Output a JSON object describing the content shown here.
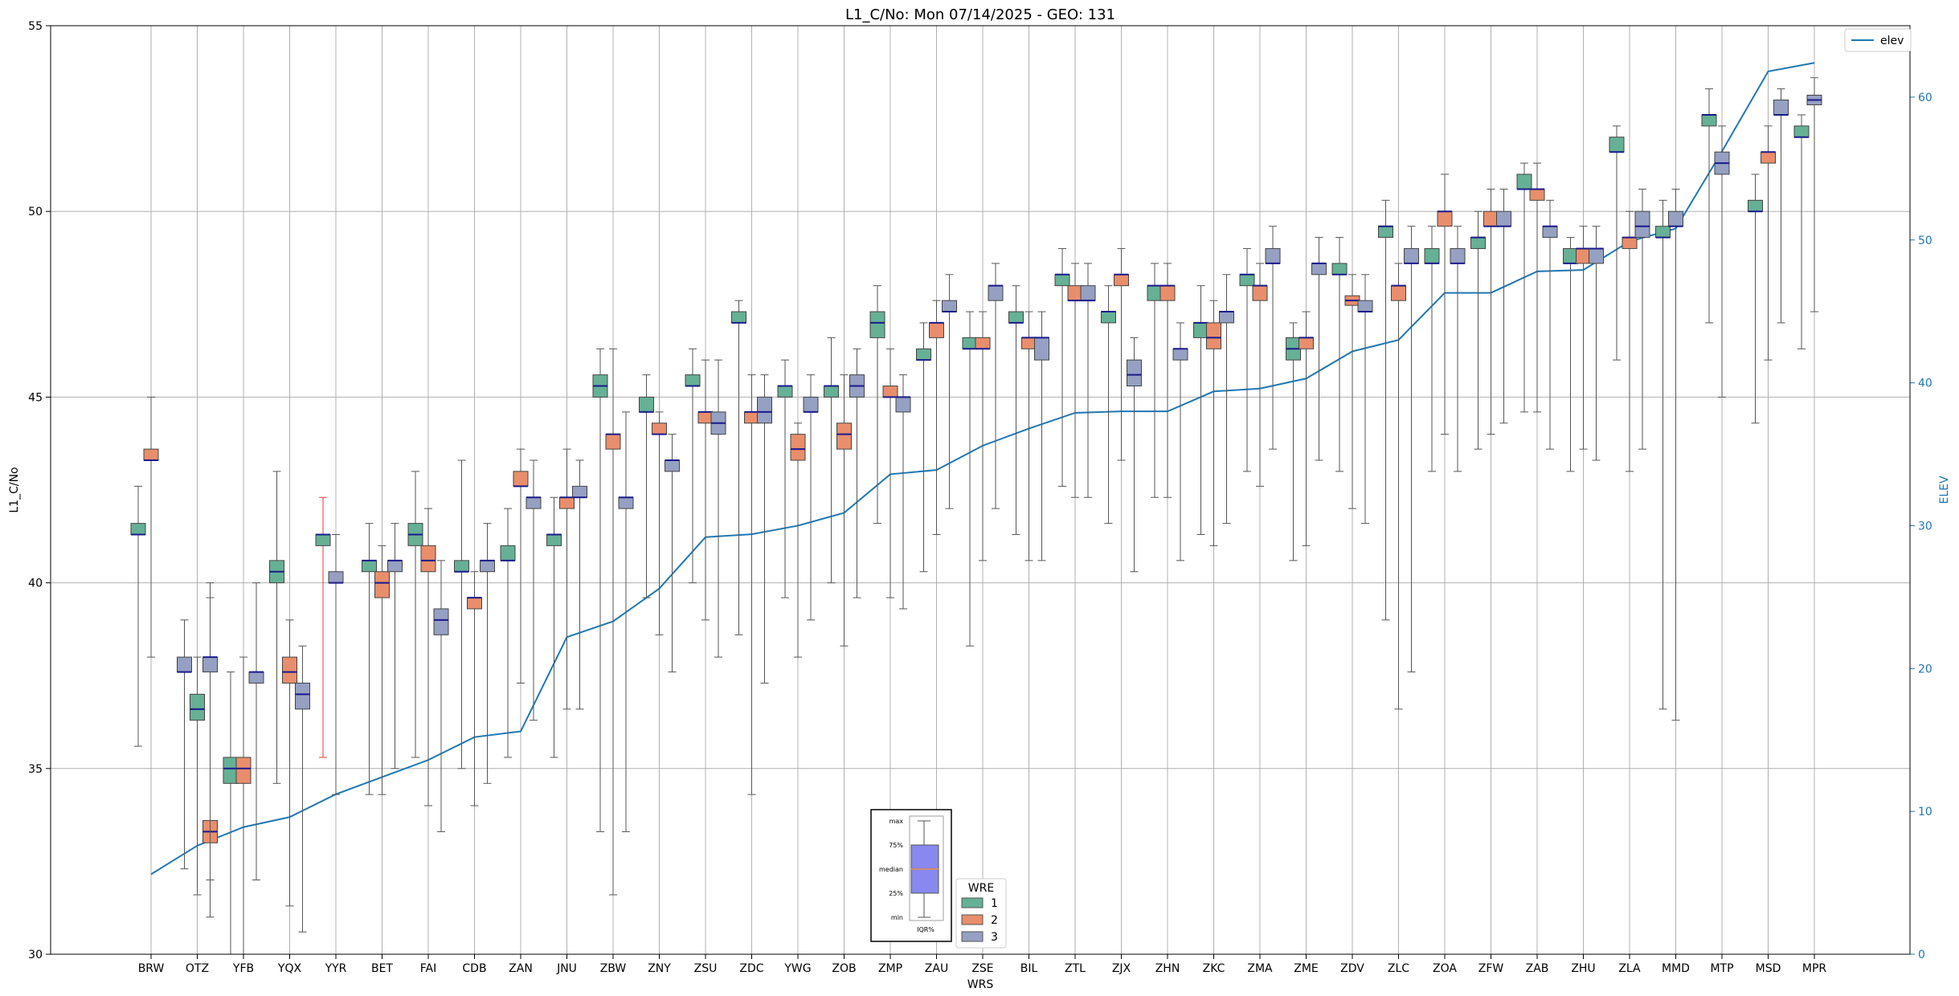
{
  "chart_data": {
    "type": "box",
    "title": "L1_C/No: Mon 07/14/2025 - GEO: 131",
    "xlabel": "WRS",
    "ylabel": "L1_C/No",
    "y2label": "ELEV",
    "ylim": [
      30,
      55
    ],
    "y2lim": [
      0,
      65
    ],
    "yticks": [
      30,
      35,
      40,
      45,
      50,
      55
    ],
    "y2ticks": [
      0,
      10,
      20,
      30,
      40,
      50,
      60
    ],
    "grid": true,
    "categories": [
      "BRW",
      "OTZ",
      "YFB",
      "YQX",
      "YYR",
      "BET",
      "FAI",
      "CDB",
      "ZAN",
      "JNU",
      "ZBW",
      "ZNY",
      "ZSU",
      "ZDC",
      "YWG",
      "ZOB",
      "ZMP",
      "ZAU",
      "ZSE",
      "BIL",
      "ZTL",
      "ZJX",
      "ZHN",
      "ZKC",
      "ZMA",
      "ZME",
      "ZDV",
      "ZLC",
      "ZOA",
      "ZFW",
      "ZAB",
      "ZHU",
      "ZLA",
      "MMD",
      "MTP",
      "MSD",
      "MPR"
    ],
    "wre_legend": {
      "title": "WRE",
      "entries": [
        {
          "label": "1",
          "color": "#66b096"
        },
        {
          "label": "2",
          "color": "#e88e6c"
        },
        {
          "label": "3",
          "color": "#95a0c2"
        }
      ]
    },
    "elev_series": {
      "name": "elev",
      "color": "#1f77b4",
      "values": [
        5.6,
        7.6,
        8.9,
        9.6,
        11.2,
        12.4,
        13.6,
        15.2,
        15.6,
        22.2,
        23.3,
        25.6,
        29.2,
        29.4,
        30.0,
        30.9,
        33.6,
        33.9,
        35.6,
        36.8,
        37.9,
        38.0,
        38.0,
        39.4,
        39.6,
        40.3,
        42.2,
        43.0,
        46.3,
        46.3,
        47.8,
        47.9,
        49.9,
        50.8,
        56.2,
        61.8,
        62.4
      ]
    },
    "boxes": [
      {
        "station": "BRW",
        "wre": 1,
        "min": 35.6,
        "q1": 41.3,
        "median": 41.3,
        "q3": 41.6,
        "max": 42.6
      },
      {
        "station": "BRW",
        "wre": 2,
        "min": 38.0,
        "q1": 43.3,
        "median": 43.3,
        "q3": 43.6,
        "max": 45.0
      },
      {
        "station": "OTZ",
        "wre": 3,
        "min": 32.3,
        "q1": 37.6,
        "median": 37.6,
        "q3": 38.0,
        "max": 39.0
      },
      {
        "station": "OTZ",
        "wre": 1,
        "min": 31.6,
        "q1": 36.3,
        "median": 36.6,
        "q3": 37.0,
        "max": 38.0
      },
      {
        "station": "OTZ",
        "wre": 2,
        "min": 31.0,
        "q1": 33.0,
        "median": 33.3,
        "q3": 33.6,
        "max": 40.0
      },
      {
        "station": "OTZ",
        "wre": 3,
        "min": 32.0,
        "q1": 37.6,
        "median": 38.0,
        "q3": 38.0,
        "max": 39.6
      },
      {
        "station": "YFB",
        "wre": 1,
        "min": 30.0,
        "q1": 34.6,
        "median": 35.0,
        "q3": 35.3,
        "max": 37.6
      },
      {
        "station": "YFB",
        "wre": 2,
        "min": 30.0,
        "q1": 34.6,
        "median": 35.0,
        "q3": 35.3,
        "max": 38.0
      },
      {
        "station": "YFB",
        "wre": 3,
        "min": 32.0,
        "q1": 37.3,
        "median": 37.6,
        "q3": 37.6,
        "max": 40.0
      },
      {
        "station": "YQX",
        "wre": 1,
        "min": 34.6,
        "q1": 40.0,
        "median": 40.3,
        "q3": 40.6,
        "max": 43.0
      },
      {
        "station": "YQX",
        "wre": 2,
        "min": 31.3,
        "q1": 37.3,
        "median": 37.6,
        "q3": 38.0,
        "max": 39.0
      },
      {
        "station": "YQX",
        "wre": 3,
        "min": 30.6,
        "q1": 36.6,
        "median": 37.0,
        "q3": 37.3,
        "max": 38.3
      },
      {
        "station": "YYR",
        "wre": 1,
        "min": 35.3,
        "q1": 41.0,
        "median": 41.3,
        "q3": 41.3,
        "max": 42.3,
        "whisker_color": "#e33a3a"
      },
      {
        "station": "YYR",
        "wre": 3,
        "min": 34.3,
        "q1": 40.0,
        "median": 40.0,
        "q3": 40.3,
        "max": 41.3
      },
      {
        "station": "BET",
        "wre": 1,
        "min": 34.3,
        "q1": 40.3,
        "median": 40.6,
        "q3": 40.6,
        "max": 41.6
      },
      {
        "station": "BET",
        "wre": 2,
        "min": 34.3,
        "q1": 39.6,
        "median": 40.0,
        "q3": 40.3,
        "max": 41.0
      },
      {
        "station": "BET",
        "wre": 3,
        "min": 35.0,
        "q1": 40.3,
        "median": 40.6,
        "q3": 40.6,
        "max": 41.6
      },
      {
        "station": "FAI",
        "wre": 1,
        "min": 35.3,
        "q1": 41.0,
        "median": 41.3,
        "q3": 41.6,
        "max": 43.0
      },
      {
        "station": "FAI",
        "wre": 2,
        "min": 34.0,
        "q1": 40.3,
        "median": 40.6,
        "q3": 41.0,
        "max": 42.0
      },
      {
        "station": "FAI",
        "wre": 3,
        "min": 33.3,
        "q1": 38.6,
        "median": 39.0,
        "q3": 39.3,
        "max": 40.6
      },
      {
        "station": "CDB",
        "wre": 1,
        "min": 35.0,
        "q1": 40.3,
        "median": 40.3,
        "q3": 40.6,
        "max": 43.3
      },
      {
        "station": "CDB",
        "wre": 2,
        "min": 34.0,
        "q1": 39.3,
        "median": 39.6,
        "q3": 39.6,
        "max": 40.3
      },
      {
        "station": "CDB",
        "wre": 3,
        "min": 34.6,
        "q1": 40.3,
        "median": 40.6,
        "q3": 40.6,
        "max": 41.6
      },
      {
        "station": "ZAN",
        "wre": 1,
        "min": 35.3,
        "q1": 40.6,
        "median": 40.6,
        "q3": 41.0,
        "max": 42.0
      },
      {
        "station": "ZAN",
        "wre": 2,
        "min": 37.3,
        "q1": 42.6,
        "median": 42.6,
        "q3": 43.0,
        "max": 43.6
      },
      {
        "station": "ZAN",
        "wre": 3,
        "min": 36.3,
        "q1": 42.0,
        "median": 42.3,
        "q3": 42.3,
        "max": 43.3
      },
      {
        "station": "JNU",
        "wre": 1,
        "min": 35.3,
        "q1": 41.0,
        "median": 41.3,
        "q3": 41.3,
        "max": 42.3
      },
      {
        "station": "JNU",
        "wre": 2,
        "min": 36.6,
        "q1": 42.0,
        "median": 42.3,
        "q3": 42.3,
        "max": 43.6
      },
      {
        "station": "JNU",
        "wre": 3,
        "min": 36.6,
        "q1": 42.3,
        "median": 42.3,
        "q3": 42.6,
        "max": 43.3
      },
      {
        "station": "ZBW",
        "wre": 1,
        "min": 33.3,
        "q1": 45.0,
        "median": 45.3,
        "q3": 45.6,
        "max": 46.3
      },
      {
        "station": "ZBW",
        "wre": 2,
        "min": 31.6,
        "q1": 43.6,
        "median": 44.0,
        "q3": 44.0,
        "max": 46.3
      },
      {
        "station": "ZBW",
        "wre": 3,
        "min": 33.3,
        "q1": 42.0,
        "median": 42.3,
        "q3": 42.3,
        "max": 44.6
      },
      {
        "station": "ZNY",
        "wre": 1,
        "min": 39.6,
        "q1": 44.6,
        "median": 44.6,
        "q3": 45.0,
        "max": 45.6
      },
      {
        "station": "ZNY",
        "wre": 2,
        "min": 38.6,
        "q1": 44.0,
        "median": 44.0,
        "q3": 44.3,
        "max": 44.6
      },
      {
        "station": "ZNY",
        "wre": 3,
        "min": 37.6,
        "q1": 43.0,
        "median": 43.3,
        "q3": 43.3,
        "max": 44.0
      },
      {
        "station": "ZSU",
        "wre": 1,
        "min": 40.0,
        "q1": 45.3,
        "median": 45.3,
        "q3": 45.6,
        "max": 46.3
      },
      {
        "station": "ZSU",
        "wre": 2,
        "min": 39.0,
        "q1": 44.3,
        "median": 44.6,
        "q3": 44.6,
        "max": 46.0
      },
      {
        "station": "ZSU",
        "wre": 3,
        "min": 38.0,
        "q1": 44.0,
        "median": 44.3,
        "q3": 44.6,
        "max": 46.0
      },
      {
        "station": "ZDC",
        "wre": 1,
        "min": 38.6,
        "q1": 47.0,
        "median": 47.0,
        "q3": 47.3,
        "max": 47.6
      },
      {
        "station": "ZDC",
        "wre": 2,
        "min": 34.3,
        "q1": 44.3,
        "median": 44.6,
        "q3": 44.6,
        "max": 45.6
      },
      {
        "station": "ZDC",
        "wre": 3,
        "min": 37.3,
        "q1": 44.3,
        "median": 44.6,
        "q3": 45.0,
        "max": 45.6
      },
      {
        "station": "YWG",
        "wre": 1,
        "min": 39.6,
        "q1": 45.0,
        "median": 45.3,
        "q3": 45.3,
        "max": 46.0
      },
      {
        "station": "YWG",
        "wre": 2,
        "min": 38.0,
        "q1": 43.3,
        "median": 43.6,
        "q3": 44.0,
        "max": 44.3
      },
      {
        "station": "YWG",
        "wre": 3,
        "min": 39.0,
        "q1": 44.6,
        "median": 44.6,
        "q3": 45.0,
        "max": 45.6
      },
      {
        "station": "ZOB",
        "wre": 1,
        "min": 40.0,
        "q1": 45.0,
        "median": 45.3,
        "q3": 45.3,
        "max": 46.6
      },
      {
        "station": "ZOB",
        "wre": 2,
        "min": 38.3,
        "q1": 43.6,
        "median": 44.0,
        "q3": 44.3,
        "max": 45.6
      },
      {
        "station": "ZOB",
        "wre": 3,
        "min": 39.6,
        "q1": 45.0,
        "median": 45.3,
        "q3": 45.6,
        "max": 46.3
      },
      {
        "station": "ZMP",
        "wre": 1,
        "min": 41.6,
        "q1": 46.6,
        "median": 47.0,
        "q3": 47.3,
        "max": 48.0
      },
      {
        "station": "ZMP",
        "wre": 2,
        "min": 39.6,
        "q1": 45.0,
        "median": 45.0,
        "q3": 45.3,
        "max": 46.3
      },
      {
        "station": "ZMP",
        "wre": 3,
        "min": 39.3,
        "q1": 44.6,
        "median": 45.0,
        "q3": 45.0,
        "max": 45.6
      },
      {
        "station": "ZAU",
        "wre": 1,
        "min": 40.3,
        "q1": 46.0,
        "median": 46.0,
        "q3": 46.3,
        "max": 47.0
      },
      {
        "station": "ZAU",
        "wre": 2,
        "min": 41.3,
        "q1": 46.6,
        "median": 47.0,
        "q3": 47.0,
        "max": 47.6
      },
      {
        "station": "ZAU",
        "wre": 3,
        "min": 42.0,
        "q1": 47.3,
        "median": 47.3,
        "q3": 47.6,
        "max": 48.3
      },
      {
        "station": "ZSE",
        "wre": 1,
        "min": 38.3,
        "q1": 46.3,
        "median": 46.3,
        "q3": 46.6,
        "max": 47.3
      },
      {
        "station": "ZSE",
        "wre": 2,
        "min": 40.6,
        "q1": 46.3,
        "median": 46.3,
        "q3": 46.6,
        "max": 47.3
      },
      {
        "station": "ZSE",
        "wre": 3,
        "min": 42.0,
        "q1": 47.6,
        "median": 48.0,
        "q3": 48.0,
        "max": 48.6
      },
      {
        "station": "BIL",
        "wre": 1,
        "min": 41.3,
        "q1": 47.0,
        "median": 47.0,
        "q3": 47.3,
        "max": 48.0
      },
      {
        "station": "BIL",
        "wre": 2,
        "min": 40.6,
        "q1": 46.3,
        "median": 46.6,
        "q3": 46.6,
        "max": 47.3
      },
      {
        "station": "BIL",
        "wre": 3,
        "min": 40.6,
        "q1": 46.0,
        "median": 46.6,
        "q3": 46.6,
        "max": 47.3
      },
      {
        "station": "ZTL",
        "wre": 1,
        "min": 42.6,
        "q1": 48.0,
        "median": 48.3,
        "q3": 48.3,
        "max": 49.0
      },
      {
        "station": "ZTL",
        "wre": 2,
        "min": 42.3,
        "q1": 47.6,
        "median": 47.6,
        "q3": 48.0,
        "max": 48.6
      },
      {
        "station": "ZTL",
        "wre": 3,
        "min": 42.3,
        "q1": 47.6,
        "median": 47.6,
        "q3": 48.0,
        "max": 48.6
      },
      {
        "station": "ZJX",
        "wre": 1,
        "min": 41.6,
        "q1": 47.0,
        "median": 47.3,
        "q3": 47.3,
        "max": 48.0
      },
      {
        "station": "ZJX",
        "wre": 2,
        "min": 43.3,
        "q1": 48.0,
        "median": 48.3,
        "q3": 48.3,
        "max": 49.0
      },
      {
        "station": "ZJX",
        "wre": 3,
        "min": 40.3,
        "q1": 45.3,
        "median": 45.6,
        "q3": 46.0,
        "max": 46.6
      },
      {
        "station": "ZHN",
        "wre": 1,
        "min": 42.3,
        "q1": 47.6,
        "median": 48.0,
        "q3": 48.0,
        "max": 48.6
      },
      {
        "station": "ZHN",
        "wre": 2,
        "min": 42.3,
        "q1": 47.6,
        "median": 48.0,
        "q3": 48.0,
        "max": 48.6
      },
      {
        "station": "ZHN",
        "wre": 3,
        "min": 40.6,
        "q1": 46.0,
        "median": 46.3,
        "q3": 46.3,
        "max": 47.0
      },
      {
        "station": "ZKC",
        "wre": 1,
        "min": 41.3,
        "q1": 46.6,
        "median": 47.0,
        "q3": 47.0,
        "max": 48.0
      },
      {
        "station": "ZKC",
        "wre": 2,
        "min": 41.0,
        "q1": 46.3,
        "median": 46.6,
        "q3": 47.0,
        "max": 47.6
      },
      {
        "station": "ZKC",
        "wre": 3,
        "min": 41.6,
        "q1": 47.0,
        "median": 47.3,
        "q3": 47.3,
        "max": 48.3
      },
      {
        "station": "ZMA",
        "wre": 1,
        "min": 43.0,
        "q1": 48.0,
        "median": 48.3,
        "q3": 48.3,
        "max": 49.0
      },
      {
        "station": "ZMA",
        "wre": 2,
        "min": 42.6,
        "q1": 47.6,
        "median": 48.0,
        "q3": 48.0,
        "max": 48.6
      },
      {
        "station": "ZMA",
        "wre": 3,
        "min": 43.6,
        "q1": 48.6,
        "median": 48.6,
        "q3": 49.0,
        "max": 49.6
      },
      {
        "station": "ZME",
        "wre": 1,
        "min": 40.6,
        "q1": 46.0,
        "median": 46.3,
        "q3": 46.6,
        "max": 47.0
      },
      {
        "station": "ZME",
        "wre": 2,
        "min": 41.0,
        "q1": 46.3,
        "median": 46.6,
        "q3": 46.6,
        "max": 47.3
      },
      {
        "station": "ZME",
        "wre": 3,
        "min": 43.3,
        "q1": 48.3,
        "median": 48.6,
        "q3": 48.6,
        "max": 49.3
      },
      {
        "station": "ZDV",
        "wre": 1,
        "min": 43.0,
        "q1": 48.3,
        "median": 48.3,
        "q3": 48.6,
        "max": 49.3
      },
      {
        "station": "ZDV",
        "wre": 2,
        "min": 42.0,
        "q1": 47.6,
        "median": 47.6,
        "q3": 47.6,
        "max": 48.3
      },
      {
        "station": "ZDV",
        "wre": 3,
        "min": 41.6,
        "q1": 47.3,
        "median": 47.3,
        "q3": 47.6,
        "max": 48.3
      },
      {
        "station": "ZLC",
        "wre": 1,
        "min": 39.0,
        "q1": 49.3,
        "median": 49.6,
        "q3": 49.6,
        "max": 50.3
      },
      {
        "station": "ZLC",
        "wre": 2,
        "min": 36.6,
        "q1": 47.6,
        "median": 48.0,
        "q3": 48.0,
        "max": 48.6
      },
      {
        "station": "ZLC",
        "wre": 3,
        "min": 37.6,
        "q1": 48.6,
        "median": 48.6,
        "q3": 49.0,
        "max": 49.6
      },
      {
        "station": "ZOA",
        "wre": 1,
        "min": 43.0,
        "q1": 48.6,
        "median": 48.6,
        "q3": 49.0,
        "max": 49.6
      },
      {
        "station": "ZOA",
        "wre": 2,
        "min": 44.0,
        "q1": 49.6,
        "median": 50.0,
        "q3": 50.0,
        "max": 51.0
      },
      {
        "station": "ZOA",
        "wre": 3,
        "min": 43.0,
        "q1": 48.6,
        "median": 48.6,
        "q3": 49.0,
        "max": 49.6
      },
      {
        "station": "ZFW",
        "wre": 1,
        "min": 43.6,
        "q1": 49.0,
        "median": 49.3,
        "q3": 49.3,
        "max": 50.0
      },
      {
        "station": "ZFW",
        "wre": 2,
        "min": 44.0,
        "q1": 49.6,
        "median": 49.6,
        "q3": 50.0,
        "max": 50.6
      },
      {
        "station": "ZFW",
        "wre": 3,
        "min": 44.3,
        "q1": 49.6,
        "median": 49.6,
        "q3": 50.0,
        "max": 50.6
      },
      {
        "station": "ZAB",
        "wre": 1,
        "min": 44.6,
        "q1": 50.6,
        "median": 50.6,
        "q3": 51.0,
        "max": 51.3
      },
      {
        "station": "ZAB",
        "wre": 2,
        "min": 44.6,
        "q1": 50.3,
        "median": 50.6,
        "q3": 50.6,
        "max": 51.3
      },
      {
        "station": "ZAB",
        "wre": 3,
        "min": 43.6,
        "q1": 49.3,
        "median": 49.6,
        "q3": 49.6,
        "max": 50.3
      },
      {
        "station": "ZHU",
        "wre": 1,
        "min": 43.0,
        "q1": 48.6,
        "median": 48.6,
        "q3": 49.0,
        "max": 49.3
      },
      {
        "station": "ZHU",
        "wre": 2,
        "min": 43.6,
        "q1": 48.6,
        "median": 49.0,
        "q3": 49.0,
        "max": 49.6
      },
      {
        "station": "ZHU",
        "wre": 3,
        "min": 43.3,
        "q1": 48.6,
        "median": 49.0,
        "q3": 49.0,
        "max": 49.6
      },
      {
        "station": "ZLA",
        "wre": 1,
        "min": 46.0,
        "q1": 51.6,
        "median": 51.6,
        "q3": 52.0,
        "max": 52.3
      },
      {
        "station": "ZLA",
        "wre": 2,
        "min": 43.0,
        "q1": 49.0,
        "median": 49.3,
        "q3": 49.3,
        "max": 50.0
      },
      {
        "station": "ZLA",
        "wre": 3,
        "min": 43.6,
        "q1": 49.3,
        "median": 49.6,
        "q3": 50.0,
        "max": 50.6
      },
      {
        "station": "MMD",
        "wre": 1,
        "min": 36.6,
        "q1": 49.3,
        "median": 49.3,
        "q3": 49.6,
        "max": 50.3
      },
      {
        "station": "MMD",
        "wre": 3,
        "min": 36.3,
        "q1": 49.6,
        "median": 49.6,
        "q3": 50.0,
        "max": 50.6
      },
      {
        "station": "MTP",
        "wre": 1,
        "min": 47.0,
        "q1": 52.3,
        "median": 52.6,
        "q3": 52.6,
        "max": 53.3
      },
      {
        "station": "MTP",
        "wre": 3,
        "min": 45.0,
        "q1": 51.0,
        "median": 51.3,
        "q3": 51.6,
        "max": 52.3
      },
      {
        "station": "MSD",
        "wre": 1,
        "min": 44.3,
        "q1": 50.0,
        "median": 50.0,
        "q3": 50.3,
        "max": 51.0
      },
      {
        "station": "MSD",
        "wre": 2,
        "min": 46.0,
        "q1": 51.3,
        "median": 51.6,
        "q3": 51.6,
        "max": 52.3
      },
      {
        "station": "MSD",
        "wre": 3,
        "min": 47.0,
        "q1": 52.6,
        "median": 52.6,
        "q3": 53.0,
        "max": 53.3
      },
      {
        "station": "MPR",
        "wre": 1,
        "min": 46.3,
        "q1": 52.0,
        "median": 52.0,
        "q3": 52.3,
        "max": 52.6
      },
      {
        "station": "MPR",
        "wre": 3,
        "min": 47.3,
        "q1": 53.0,
        "median": 53.0,
        "q3": 53.0,
        "max": 53.6
      }
    ],
    "box_key": {
      "labels": [
        "max",
        "75%",
        "median",
        "25%",
        "min"
      ],
      "caption": "IQR%",
      "box_color": "#8888ee",
      "median_color": "#e8903a"
    }
  }
}
